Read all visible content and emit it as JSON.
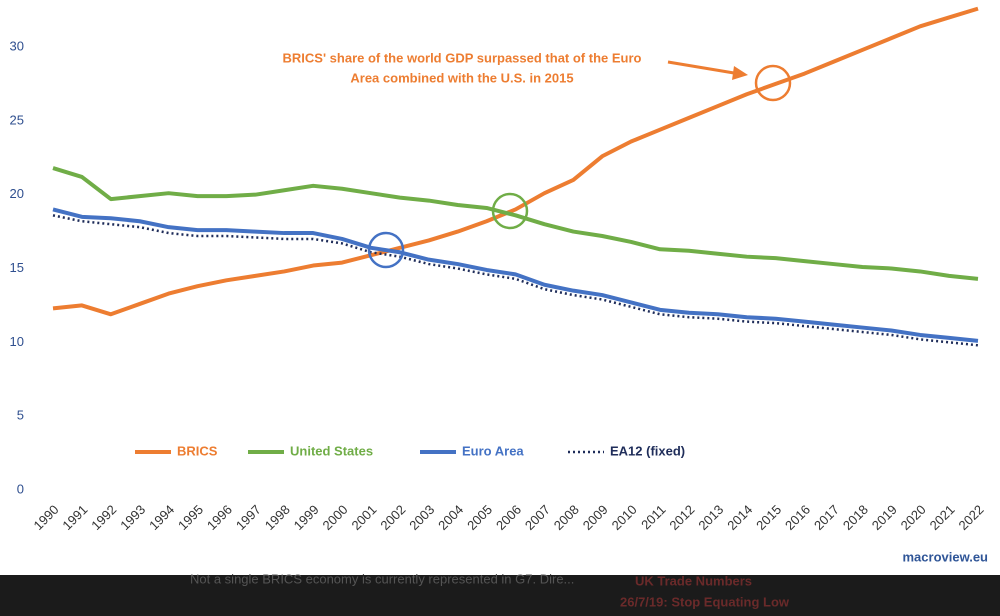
{
  "chart_data": {
    "type": "line",
    "annotation": [
      "BRICS' share of the world  GDP surpassed that of the Euro",
      "Area combined with the U.S. in 2015"
    ],
    "watermark": "macroview.eu",
    "categories": [
      "1990",
      "1991",
      "1992",
      "1993",
      "1994",
      "1995",
      "1996",
      "1997",
      "1998",
      "1999",
      "2000",
      "2001",
      "2002",
      "2003",
      "2004",
      "2005",
      "2006",
      "2007",
      "2008",
      "2009",
      "2010",
      "2011",
      "2012",
      "2013",
      "2014",
      "2015",
      "2016",
      "2017",
      "2018",
      "2019",
      "2020",
      "2021",
      "2022"
    ],
    "series": [
      {
        "name": "BRICS",
        "color": "#ed7d31",
        "style": "solid",
        "values": [
          12.3,
          12.5,
          11.9,
          12.6,
          13.3,
          13.8,
          14.2,
          14.5,
          14.8,
          15.2,
          15.4,
          15.9,
          16.4,
          16.9,
          17.5,
          18.2,
          19.0,
          20.1,
          21.0,
          22.6,
          23.6,
          24.4,
          25.2,
          26.0,
          26.8,
          27.5,
          28.2,
          29.0,
          29.8,
          30.6,
          31.4,
          32.0,
          32.6
        ]
      },
      {
        "name": "United States",
        "color": "#70ad47",
        "style": "solid",
        "values": [
          21.8,
          21.2,
          19.7,
          19.9,
          20.1,
          19.9,
          19.9,
          20.0,
          20.3,
          20.6,
          20.4,
          20.1,
          19.8,
          19.6,
          19.3,
          19.1,
          18.6,
          18.0,
          17.5,
          17.2,
          16.8,
          16.3,
          16.2,
          16.0,
          15.8,
          15.7,
          15.5,
          15.3,
          15.1,
          15.0,
          14.8,
          14.5,
          14.3
        ]
      },
      {
        "name": "Euro Area",
        "color": "#4472c4",
        "style": "solid",
        "values": [
          19.0,
          18.5,
          18.4,
          18.2,
          17.8,
          17.6,
          17.6,
          17.5,
          17.4,
          17.4,
          17.0,
          16.4,
          16.1,
          15.6,
          15.3,
          14.9,
          14.6,
          13.9,
          13.5,
          13.2,
          12.7,
          12.2,
          12.0,
          11.9,
          11.7,
          11.6,
          11.4,
          11.2,
          11.0,
          10.8,
          10.5,
          10.3,
          10.1
        ]
      },
      {
        "name": "EA12 (fixed)",
        "color": "#1f2d5a",
        "style": "dotted",
        "values": [
          18.6,
          18.2,
          18.0,
          17.8,
          17.4,
          17.2,
          17.2,
          17.1,
          17.0,
          17.0,
          16.7,
          16.1,
          15.8,
          15.3,
          15.0,
          14.6,
          14.3,
          13.6,
          13.2,
          12.9,
          12.4,
          11.9,
          11.7,
          11.6,
          11.4,
          11.3,
          11.1,
          10.9,
          10.7,
          10.5,
          10.2,
          10.0,
          9.8
        ]
      }
    ],
    "ylim": [
      0,
      30
    ],
    "yticks": [
      0,
      5,
      10,
      15,
      20,
      25,
      30
    ],
    "grid": false,
    "legend": "lower left"
  },
  "footer": [
    "Not a single BRICS economy is currently represented in G7. Dire...",
    "UK Trade Numbers",
    "26/7/19: Stop Equating Low"
  ]
}
